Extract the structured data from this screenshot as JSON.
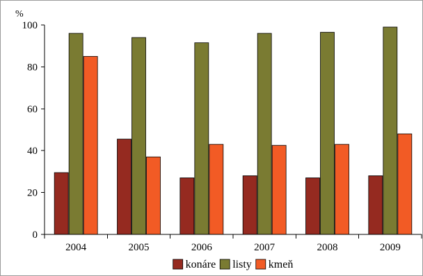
{
  "chart_data": {
    "type": "bar",
    "title": "",
    "xlabel": "",
    "ylabel": "",
    "unit_label": "%",
    "categories": [
      "2004",
      "2005",
      "2006",
      "2007",
      "2008",
      "2009"
    ],
    "series": [
      {
        "name": "konáre",
        "color": "#952A20",
        "values": [
          29.5,
          45.5,
          27,
          28,
          27,
          28
        ]
      },
      {
        "name": "listy",
        "color": "#7A7B32",
        "values": [
          96,
          94,
          91.5,
          96,
          96.5,
          99
        ]
      },
      {
        "name": "kmeň",
        "color": "#F25B25",
        "values": [
          85,
          37,
          43,
          42.5,
          43,
          48
        ]
      }
    ],
    "ylim": [
      0,
      100
    ],
    "yticks": [
      0,
      20,
      40,
      60,
      80,
      100
    ],
    "grid": false,
    "legend_position": "bottom"
  }
}
